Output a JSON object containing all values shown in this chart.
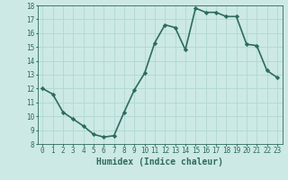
{
  "x": [
    0,
    1,
    2,
    3,
    4,
    5,
    6,
    7,
    8,
    9,
    10,
    11,
    12,
    13,
    14,
    15,
    16,
    17,
    18,
    19,
    20,
    21,
    22,
    23
  ],
  "y": [
    12.0,
    11.6,
    10.3,
    9.8,
    9.3,
    8.7,
    8.5,
    8.6,
    10.3,
    11.9,
    13.1,
    15.3,
    16.6,
    16.4,
    14.8,
    17.8,
    17.5,
    17.5,
    17.2,
    17.2,
    15.2,
    15.1,
    13.3,
    12.8
  ],
  "line_color": "#2e6b5e",
  "marker": "D",
  "marker_size": 2.2,
  "bg_color": "#cce9e5",
  "grid_color": "#b0d8d3",
  "xlabel": "Humidex (Indice chaleur)",
  "ylim": [
    8,
    18
  ],
  "xlim": [
    -0.5,
    23.5
  ],
  "yticks": [
    8,
    9,
    10,
    11,
    12,
    13,
    14,
    15,
    16,
    17,
    18
  ],
  "xticks": [
    0,
    1,
    2,
    3,
    4,
    5,
    6,
    7,
    8,
    9,
    10,
    11,
    12,
    13,
    14,
    15,
    16,
    17,
    18,
    19,
    20,
    21,
    22,
    23
  ],
  "tick_color": "#2e6b5e",
  "label_fontsize": 5.5,
  "xlabel_fontsize": 7,
  "line_width": 1.2
}
